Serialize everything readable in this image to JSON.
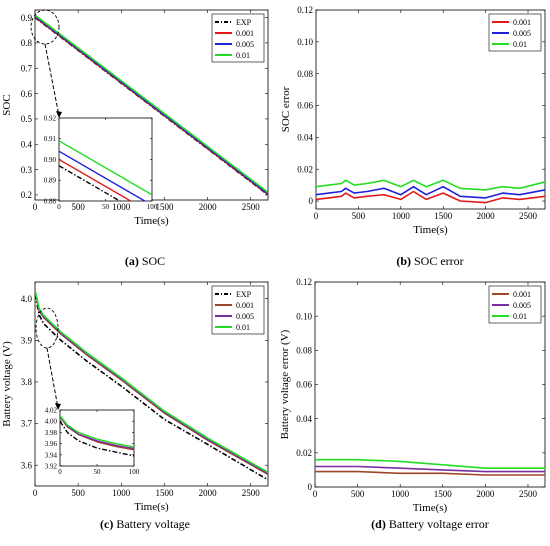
{
  "colors": {
    "exp": "#000000",
    "s001": "#e11919",
    "s005": "#1f1fdc",
    "s01": "#22dd22",
    "s001_v": "#a0452a",
    "s005_v": "#7a2da0",
    "s01_v": "#22dd22"
  },
  "chart_data": [
    {
      "id": "a",
      "type": "line",
      "caption_bold": "(a)",
      "caption_text": "SOC",
      "xlabel": "Time(s)",
      "ylabel": "SOC",
      "xlim": [
        0,
        2700
      ],
      "ylim": [
        0.18,
        0.93
      ],
      "xticks": [
        0,
        500,
        1000,
        1500,
        2000,
        2500
      ],
      "yticks": [
        0.2,
        0.3,
        0.4,
        0.5,
        0.6,
        0.7,
        0.8,
        0.9
      ],
      "ytick_labels": [
        "0.2",
        "0.3",
        "0.4",
        "0.5",
        "0.6",
        "0.7",
        "0.8",
        "0.9"
      ],
      "legend_position": "top-right",
      "series": [
        {
          "name": "EXP",
          "style": "dashdot",
          "x": [
            0,
            2700
          ],
          "y": [
            0.9,
            0.2
          ]
        },
        {
          "name": "0.001",
          "x": [
            0,
            2700
          ],
          "y": [
            0.902,
            0.202
          ]
        },
        {
          "name": "0.005",
          "x": [
            0,
            2700
          ],
          "y": [
            0.905,
            0.205
          ]
        },
        {
          "name": "0.01",
          "x": [
            0,
            2700
          ],
          "y": [
            0.91,
            0.21
          ]
        }
      ],
      "inset": {
        "xlim": [
          0,
          100
        ],
        "ylim": [
          0.88,
          0.92
        ],
        "xticks": [
          0,
          50,
          100
        ],
        "yticks": [
          0.88,
          0.89,
          0.9,
          0.91,
          0.92
        ],
        "ytick_labels": [
          "0.88",
          "0.89",
          "0.90",
          "0.91",
          "0.92"
        ],
        "series": [
          {
            "name": "EXP",
            "x": [
              0,
              100
            ],
            "y": [
              0.897,
              0.871
            ]
          },
          {
            "name": "0.001",
            "x": [
              0,
              100
            ],
            "y": [
              0.9,
              0.874
            ]
          },
          {
            "name": "0.005",
            "x": [
              0,
              100
            ],
            "y": [
              0.904,
              0.878
            ]
          },
          {
            "name": "0.01",
            "x": [
              0,
              100
            ],
            "y": [
              0.909,
              0.883
            ]
          }
        ]
      }
    },
    {
      "id": "b",
      "type": "line",
      "caption_bold": "(b)",
      "caption_text": "SOC error",
      "xlabel": "Time(s)",
      "ylabel": "SOC error",
      "xlim": [
        0,
        2700
      ],
      "ylim": [
        -0.005,
        0.12
      ],
      "xticks": [
        0,
        500,
        1000,
        1500,
        2000,
        2500
      ],
      "yticks": [
        0,
        0.02,
        0.04,
        0.06,
        0.08,
        0.1,
        0.12
      ],
      "ytick_labels": [
        "0",
        "0.02",
        "0.04",
        "0.06",
        "0.08",
        "0.10",
        "0.12"
      ],
      "legend_position": "top-right",
      "series": [
        {
          "name": "0.001",
          "x": [
            0,
            150,
            300,
            350,
            450,
            600,
            800,
            1000,
            1150,
            1300,
            1500,
            1700,
            2000,
            2200,
            2400,
            2700
          ],
          "y": [
            0.001,
            0.002,
            0.003,
            0.005,
            0.002,
            0.003,
            0.004,
            0.001,
            0.006,
            0.001,
            0.005,
            0,
            -0.001,
            0.002,
            0.001,
            0.003
          ]
        },
        {
          "name": "0.005",
          "x": [
            0,
            150,
            300,
            350,
            450,
            600,
            800,
            1000,
            1150,
            1300,
            1500,
            1700,
            2000,
            2200,
            2400,
            2700
          ],
          "y": [
            0.004,
            0.005,
            0.006,
            0.008,
            0.005,
            0.006,
            0.008,
            0.004,
            0.009,
            0.004,
            0.009,
            0.003,
            0.002,
            0.005,
            0.004,
            0.007
          ]
        },
        {
          "name": "0.01",
          "x": [
            0,
            150,
            300,
            350,
            450,
            600,
            800,
            1000,
            1150,
            1300,
            1500,
            1700,
            2000,
            2200,
            2400,
            2700
          ],
          "y": [
            0.009,
            0.01,
            0.011,
            0.013,
            0.01,
            0.011,
            0.013,
            0.009,
            0.013,
            0.009,
            0.013,
            0.008,
            0.007,
            0.009,
            0.008,
            0.012
          ]
        }
      ]
    },
    {
      "id": "c",
      "type": "line",
      "caption_bold": "(c)",
      "caption_text": "Battery voltage",
      "xlabel": "Time(s)",
      "ylabel": "Battery voltage (V)",
      "xlim": [
        0,
        2700
      ],
      "ylim": [
        3.55,
        4.04
      ],
      "xticks": [
        0,
        500,
        1000,
        1500,
        2000,
        2500
      ],
      "yticks": [
        3.6,
        3.7,
        3.8,
        3.9,
        4.0
      ],
      "ytick_labels": [
        "3.6",
        "3.7",
        "3.8",
        "3.9",
        "4.0"
      ],
      "legend_position": "top-right",
      "series": [
        {
          "name": "EXP",
          "style": "dashdot",
          "x": [
            0,
            50,
            100,
            300,
            600,
            1000,
            1500,
            2000,
            2700
          ],
          "y": [
            4.01,
            3.96,
            3.94,
            3.9,
            3.85,
            3.79,
            3.71,
            3.65,
            3.565
          ]
        },
        {
          "name": "0.001",
          "x": [
            0,
            50,
            100,
            300,
            600,
            1000,
            1500,
            2000,
            2700
          ],
          "y": [
            4.02,
            3.97,
            3.955,
            3.915,
            3.865,
            3.805,
            3.725,
            3.66,
            3.578
          ]
        },
        {
          "name": "0.005",
          "x": [
            0,
            50,
            100,
            300,
            600,
            1000,
            1500,
            2000,
            2700
          ],
          "y": [
            4.02,
            3.972,
            3.957,
            3.917,
            3.867,
            3.807,
            3.727,
            3.662,
            3.58
          ]
        },
        {
          "name": "0.01",
          "x": [
            0,
            50,
            100,
            300,
            600,
            1000,
            1500,
            2000,
            2700
          ],
          "y": [
            4.02,
            3.975,
            3.96,
            3.92,
            3.87,
            3.81,
            3.73,
            3.665,
            3.583
          ]
        }
      ],
      "inset": {
        "xlim": [
          0,
          100
        ],
        "ylim": [
          3.92,
          4.02
        ],
        "xticks": [
          0,
          50,
          100
        ],
        "yticks": [
          3.92,
          3.94,
          3.96,
          3.98,
          4.0,
          4.02
        ],
        "ytick_labels": [
          "3.92",
          "3.94",
          "3.96",
          "3.98",
          "4.00",
          "4.02"
        ],
        "series": [
          {
            "name": "EXP",
            "x": [
              0,
              10,
              25,
              50,
              75,
              100
            ],
            "y": [
              4.0,
              3.98,
              3.965,
              3.952,
              3.945,
              3.938
            ]
          },
          {
            "name": "0.001",
            "x": [
              0,
              10,
              25,
              50,
              75,
              100
            ],
            "y": [
              4.008,
              3.99,
              3.976,
              3.963,
              3.955,
              3.949
            ]
          },
          {
            "name": "0.005",
            "x": [
              0,
              10,
              25,
              50,
              75,
              100
            ],
            "y": [
              4.009,
              3.991,
              3.977,
              3.965,
              3.957,
              3.951
            ]
          },
          {
            "name": "0.01",
            "x": [
              0,
              10,
              25,
              50,
              75,
              100
            ],
            "y": [
              4.01,
              3.993,
              3.98,
              3.968,
              3.96,
              3.954
            ]
          }
        ]
      }
    },
    {
      "id": "d",
      "type": "line",
      "caption_bold": "(d)",
      "caption_text": "Battery voltage error",
      "xlabel": "Time(s)",
      "ylabel": "Battery voltage error (V)",
      "xlim": [
        0,
        2700
      ],
      "ylim": [
        0,
        0.12
      ],
      "xticks": [
        0,
        500,
        1000,
        1500,
        2000,
        2500
      ],
      "yticks": [
        0,
        0.02,
        0.04,
        0.06,
        0.08,
        0.1,
        0.12
      ],
      "ytick_labels": [
        "0",
        "0.02",
        "0.04",
        "0.06",
        "0.08",
        "0.10",
        "0.12"
      ],
      "legend_position": "top-right",
      "series": [
        {
          "name": "0.001",
          "x": [
            0,
            500,
            1000,
            1500,
            2000,
            2700
          ],
          "y": [
            0.009,
            0.009,
            0.008,
            0.008,
            0.007,
            0.007
          ]
        },
        {
          "name": "0.005",
          "x": [
            0,
            500,
            1000,
            1500,
            2000,
            2700
          ],
          "y": [
            0.012,
            0.012,
            0.011,
            0.01,
            0.009,
            0.009
          ]
        },
        {
          "name": "0.01",
          "x": [
            0,
            500,
            1000,
            1500,
            2000,
            2700
          ],
          "y": [
            0.016,
            0.016,
            0.015,
            0.013,
            0.011,
            0.011
          ]
        }
      ]
    }
  ]
}
